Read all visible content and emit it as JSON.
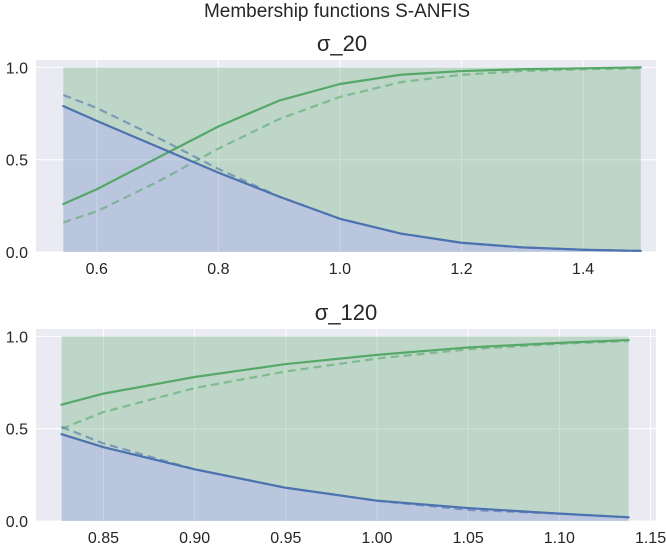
{
  "figure": {
    "title": "Membership functions S-ANFIS"
  },
  "colors": {
    "background": "#eaeaf2",
    "grid": "#ffffff",
    "blue": "#4c72b0",
    "green": "#55a868"
  },
  "chart_data": [
    {
      "type": "line",
      "title": "σ_20",
      "xlabel": "",
      "ylabel": "",
      "grid": true,
      "xlim": [
        0.5,
        1.52
      ],
      "ylim": [
        0,
        1.04
      ],
      "xticks": [
        0.6,
        0.8,
        1.0,
        1.2,
        1.4
      ],
      "xtick_labels": [
        "0.6",
        "0.8",
        "1.0",
        "1.2",
        "1.4"
      ],
      "yticks": [
        0,
        0.5,
        1.0
      ],
      "ytick_labels": [
        "0.0",
        "0.5",
        "1.0"
      ],
      "fill_range": [
        0.545,
        1.495
      ],
      "series": [
        {
          "style": "solid",
          "color": "blue",
          "x": [
            0.545,
            0.6,
            0.7,
            0.8,
            0.9,
            1.0,
            1.1,
            1.2,
            1.3,
            1.4,
            1.495
          ],
          "y": [
            0.79,
            0.71,
            0.57,
            0.43,
            0.3,
            0.18,
            0.1,
            0.05,
            0.025,
            0.012,
            0.006
          ]
        },
        {
          "style": "solid",
          "color": "green",
          "x": [
            0.545,
            0.6,
            0.7,
            0.8,
            0.9,
            1.0,
            1.1,
            1.2,
            1.3,
            1.4,
            1.495
          ],
          "y": [
            0.26,
            0.34,
            0.51,
            0.68,
            0.82,
            0.91,
            0.96,
            0.98,
            0.99,
            0.995,
            1.0
          ]
        },
        {
          "style": "dashed",
          "color": "blue",
          "x": [
            0.545,
            0.6,
            0.7,
            0.8,
            0.9,
            1.0,
            1.1,
            1.2,
            1.3,
            1.4,
            1.495
          ],
          "y": [
            0.85,
            0.78,
            0.62,
            0.45,
            0.3,
            0.18,
            0.1,
            0.05,
            0.025,
            0.012,
            0.006
          ]
        },
        {
          "style": "dashed",
          "color": "green",
          "x": [
            0.545,
            0.6,
            0.7,
            0.8,
            0.9,
            1.0,
            1.1,
            1.2,
            1.3,
            1.4,
            1.495
          ],
          "y": [
            0.16,
            0.22,
            0.38,
            0.56,
            0.72,
            0.84,
            0.92,
            0.96,
            0.98,
            0.99,
            0.995
          ]
        }
      ]
    },
    {
      "type": "line",
      "title": "σ_120",
      "xlabel": "",
      "ylabel": "",
      "grid": true,
      "xlim": [
        0.813,
        1.153
      ],
      "ylim": [
        0,
        1.04
      ],
      "xticks": [
        0.85,
        0.9,
        0.95,
        1.0,
        1.05,
        1.1,
        1.15
      ],
      "xtick_labels": [
        "0.85",
        "0.90",
        "0.95",
        "1.00",
        "1.05",
        "1.10",
        "1.15"
      ],
      "yticks": [
        0,
        0.5,
        1.0
      ],
      "ytick_labels": [
        "0.0",
        "0.5",
        "1.0"
      ],
      "fill_range": [
        0.827,
        1.138
      ],
      "series": [
        {
          "style": "solid",
          "color": "blue",
          "x": [
            0.827,
            0.85,
            0.9,
            0.95,
            1.0,
            1.05,
            1.1,
            1.138
          ],
          "y": [
            0.47,
            0.4,
            0.28,
            0.18,
            0.11,
            0.07,
            0.04,
            0.02
          ]
        },
        {
          "style": "solid",
          "color": "green",
          "x": [
            0.827,
            0.85,
            0.9,
            0.95,
            1.0,
            1.05,
            1.1,
            1.138
          ],
          "y": [
            0.63,
            0.69,
            0.78,
            0.85,
            0.9,
            0.94,
            0.965,
            0.98
          ]
        },
        {
          "style": "dashed",
          "color": "blue",
          "x": [
            0.827,
            0.85,
            0.9,
            0.95,
            1.0,
            1.05,
            1.1,
            1.138
          ],
          "y": [
            0.51,
            0.42,
            0.28,
            0.18,
            0.11,
            0.06,
            0.04,
            0.02
          ]
        },
        {
          "style": "dashed",
          "color": "green",
          "x": [
            0.827,
            0.85,
            0.9,
            0.95,
            1.0,
            1.05,
            1.1,
            1.138
          ],
          "y": [
            0.5,
            0.59,
            0.72,
            0.81,
            0.88,
            0.93,
            0.96,
            0.975
          ]
        }
      ]
    }
  ]
}
